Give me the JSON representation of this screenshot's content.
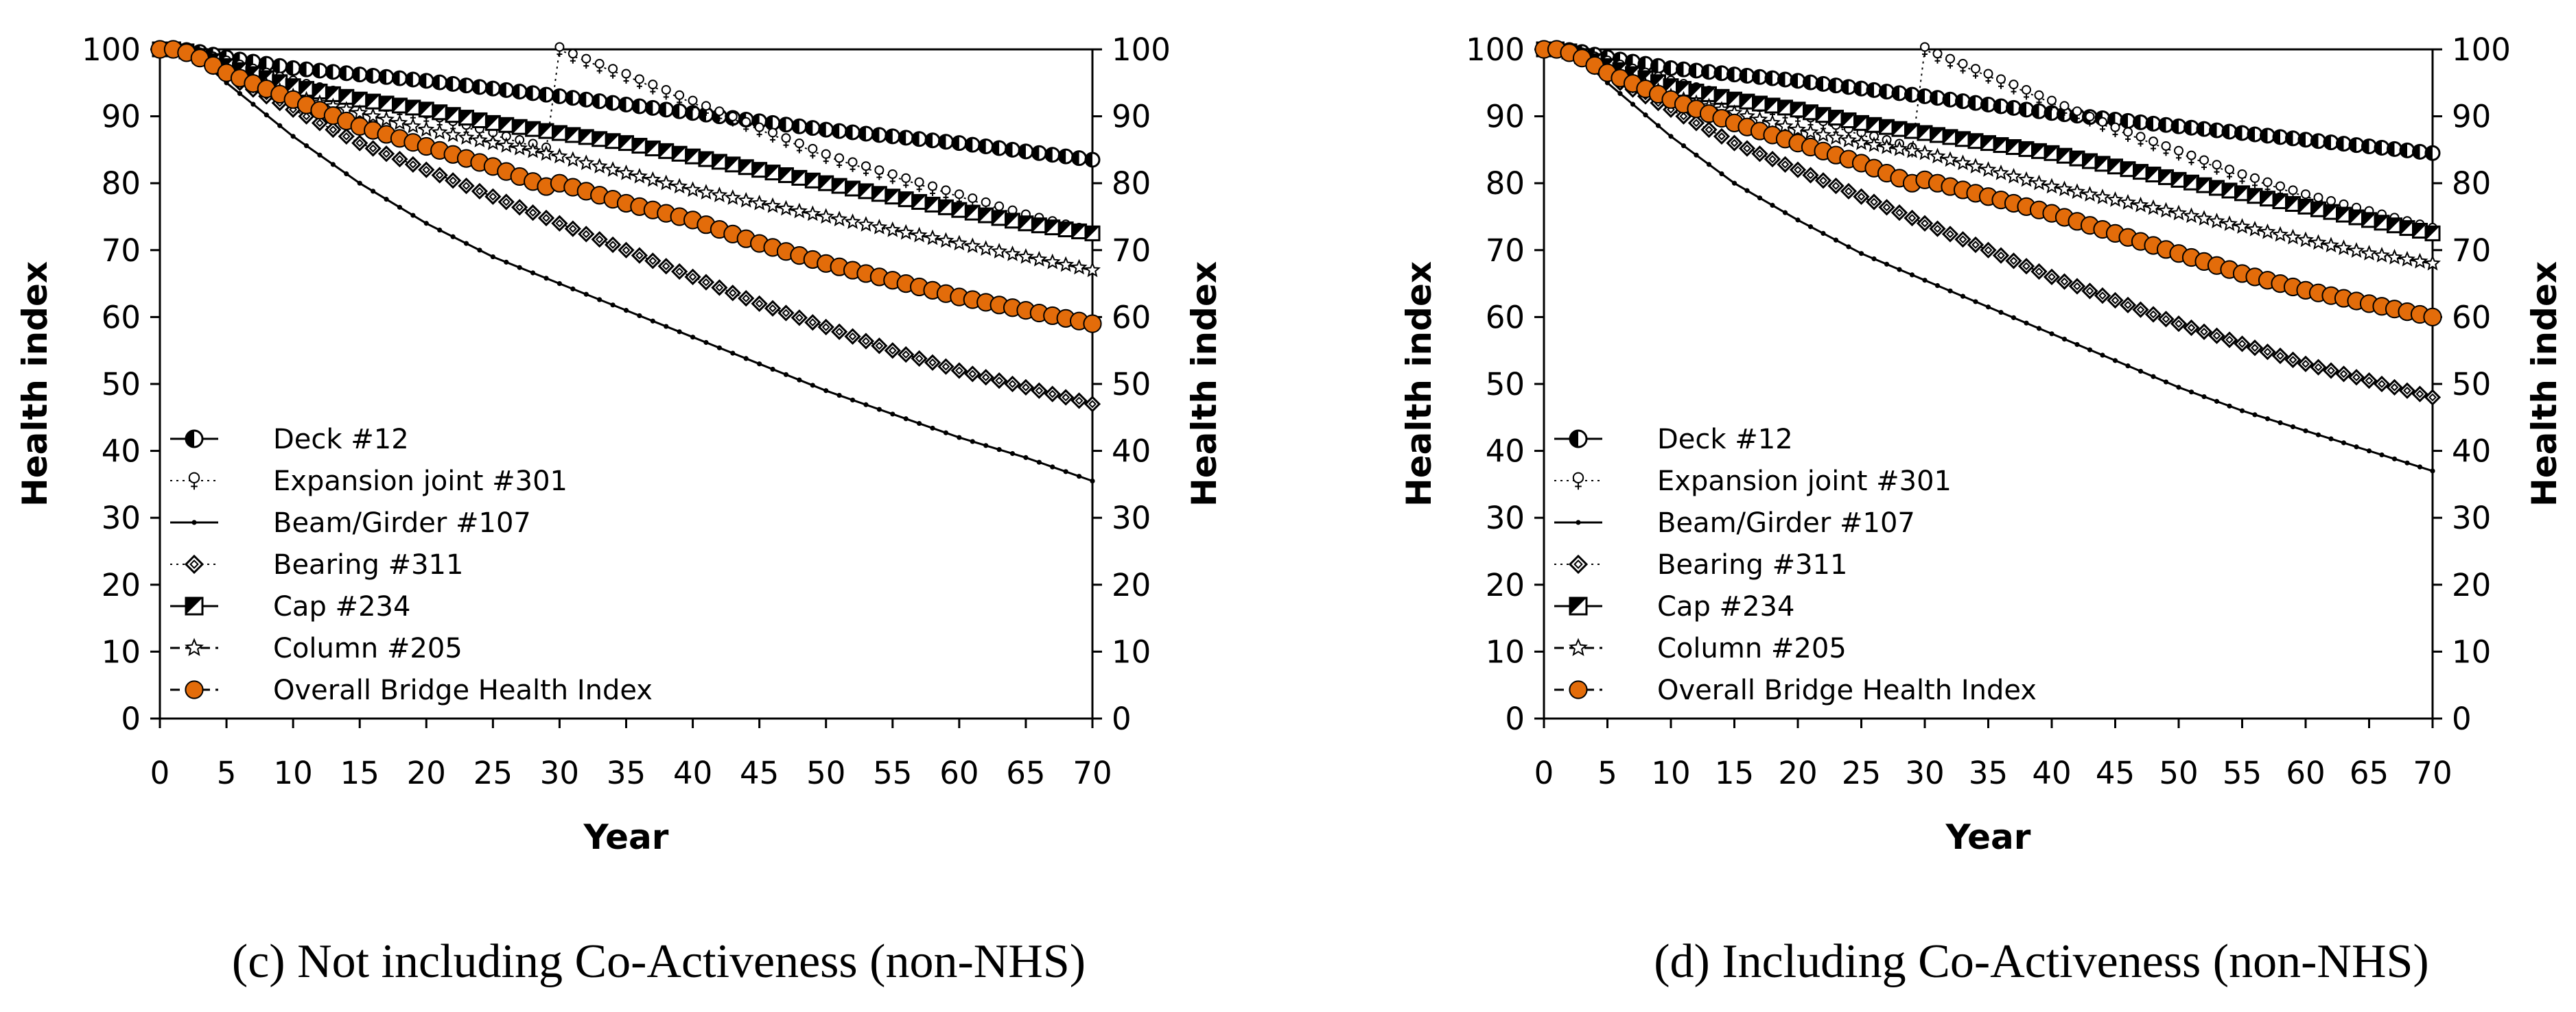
{
  "chart_data": [
    {
      "type": "line",
      "caption": "(c) Not including Co-Activeness (non-NHS)",
      "xlabel": "Year",
      "ylabel": "Health index",
      "y2label": "Health index",
      "xlim": [
        0,
        70
      ],
      "ylim": [
        0,
        100
      ],
      "xticks": [
        0,
        5,
        10,
        15,
        20,
        25,
        30,
        35,
        40,
        45,
        50,
        55,
        60,
        65,
        70
      ],
      "yticks": [
        0,
        10,
        20,
        30,
        40,
        50,
        60,
        70,
        80,
        90,
        100
      ],
      "legend_position": "bottom-left",
      "series": [
        {
          "name": "Deck #12",
          "marker": "half-circle",
          "line": "solid",
          "color": "#000000",
          "points": [
            [
              0,
              100
            ],
            [
              1,
              100
            ],
            [
              2,
              99.9
            ],
            [
              3,
              99.6
            ],
            [
              5,
              98.8
            ],
            [
              10,
              97.2
            ],
            [
              20,
              95.3
            ],
            [
              30,
              93
            ],
            [
              40,
              90.5
            ],
            [
              50,
              88
            ],
            [
              60,
              86
            ],
            [
              70,
              83.5
            ]
          ]
        },
        {
          "name": "Expansion joint #301",
          "marker": "female",
          "line": "dotted",
          "color": "#000000",
          "points": [
            [
              0,
              100
            ],
            [
              1,
              100
            ],
            [
              2,
              99.8
            ],
            [
              3,
              99.2
            ],
            [
              5,
              98
            ],
            [
              10,
              95
            ],
            [
              20,
              90
            ],
            [
              29,
              85
            ],
            [
              30,
              100
            ],
            [
              31,
              99
            ],
            [
              35,
              96
            ],
            [
              40,
              92
            ],
            [
              45,
              88
            ],
            [
              50,
              84
            ],
            [
              55,
              81
            ],
            [
              60,
              78
            ],
            [
              65,
              75
            ],
            [
              70,
              72.5
            ]
          ]
        },
        {
          "name": "Beam/Girder #107",
          "marker": "small-dot",
          "line": "solid",
          "color": "#000000",
          "points": [
            [
              0,
              100
            ],
            [
              1,
              100
            ],
            [
              2,
              99.5
            ],
            [
              3,
              98.5
            ],
            [
              5,
              95
            ],
            [
              10,
              87
            ],
            [
              15,
              80
            ],
            [
              20,
              74
            ],
            [
              25,
              69
            ],
            [
              30,
              65
            ],
            [
              35,
              61
            ],
            [
              40,
              57
            ],
            [
              45,
              53
            ],
            [
              50,
              49
            ],
            [
              55,
              45.5
            ],
            [
              60,
              42
            ],
            [
              65,
              39
            ],
            [
              70,
              35.5
            ]
          ]
        },
        {
          "name": "Bearing #311",
          "marker": "diamond",
          "line": "dotted",
          "color": "#000000",
          "points": [
            [
              0,
              100
            ],
            [
              1,
              100
            ],
            [
              2,
              99.5
            ],
            [
              3,
              98.8
            ],
            [
              5,
              96
            ],
            [
              10,
              91
            ],
            [
              15,
              86
            ],
            [
              20,
              82
            ],
            [
              25,
              78
            ],
            [
              30,
              74
            ],
            [
              35,
              70
            ],
            [
              40,
              66
            ],
            [
              45,
              62
            ],
            [
              50,
              58.5
            ],
            [
              55,
              55
            ],
            [
              60,
              52
            ],
            [
              65,
              49.5
            ],
            [
              70,
              47
            ]
          ]
        },
        {
          "name": "Cap #234",
          "marker": "half-square",
          "line": "solid",
          "color": "#000000",
          "points": [
            [
              0,
              100
            ],
            [
              1,
              100
            ],
            [
              2,
              99.7
            ],
            [
              3,
              99
            ],
            [
              5,
              97.5
            ],
            [
              10,
              94.5
            ],
            [
              15,
              92.5
            ],
            [
              20,
              91
            ],
            [
              25,
              89
            ],
            [
              30,
              87.5
            ],
            [
              35,
              86
            ],
            [
              40,
              84
            ],
            [
              45,
              82
            ],
            [
              50,
              80
            ],
            [
              55,
              78
            ],
            [
              60,
              76
            ],
            [
              65,
              74
            ],
            [
              70,
              72.5
            ]
          ]
        },
        {
          "name": "Column #205",
          "marker": "star",
          "line": "dashed",
          "color": "#000000",
          "points": [
            [
              0,
              100
            ],
            [
              1,
              100
            ],
            [
              2,
              99.7
            ],
            [
              3,
              99
            ],
            [
              5,
              97
            ],
            [
              10,
              93
            ],
            [
              15,
              90.5
            ],
            [
              20,
              88
            ],
            [
              25,
              86
            ],
            [
              30,
              84
            ],
            [
              35,
              81.5
            ],
            [
              40,
              79
            ],
            [
              45,
              77
            ],
            [
              50,
              75
            ],
            [
              55,
              73
            ],
            [
              60,
              71
            ],
            [
              65,
              69
            ],
            [
              70,
              67
            ]
          ]
        },
        {
          "name": "Overall Bridge Health Index",
          "marker": "orange-circle",
          "line": "dashed",
          "color": "#e36c0a",
          "points": [
            [
              0,
              100
            ],
            [
              1,
              100
            ],
            [
              2,
              99.5
            ],
            [
              3,
              98.7
            ],
            [
              5,
              96.5
            ],
            [
              10,
              92.5
            ],
            [
              15,
              88.5
            ],
            [
              20,
              85.5
            ],
            [
              25,
              82.5
            ],
            [
              29,
              79.5
            ],
            [
              30,
              80
            ],
            [
              35,
              77
            ],
            [
              40,
              74.5
            ],
            [
              45,
              71
            ],
            [
              50,
              68
            ],
            [
              55,
              65.5
            ],
            [
              60,
              63
            ],
            [
              65,
              61
            ],
            [
              70,
              59
            ]
          ]
        }
      ]
    },
    {
      "type": "line",
      "caption": "(d) Including Co-Activeness (non-NHS)",
      "xlabel": "Year",
      "ylabel": "Health index",
      "y2label": "Health index",
      "xlim": [
        0,
        70
      ],
      "ylim": [
        0,
        100
      ],
      "xticks": [
        0,
        5,
        10,
        15,
        20,
        25,
        30,
        35,
        40,
        45,
        50,
        55,
        60,
        65,
        70
      ],
      "yticks": [
        0,
        10,
        20,
        30,
        40,
        50,
        60,
        70,
        80,
        90,
        100
      ],
      "legend_position": "bottom-left",
      "series": [
        {
          "name": "Deck #12",
          "marker": "half-circle",
          "line": "solid",
          "color": "#000000",
          "points": [
            [
              0,
              100
            ],
            [
              1,
              100
            ],
            [
              2,
              99.9
            ],
            [
              3,
              99.6
            ],
            [
              5,
              98.8
            ],
            [
              10,
              97.2
            ],
            [
              20,
              95.3
            ],
            [
              30,
              93
            ],
            [
              40,
              90.5
            ],
            [
              50,
              88.5
            ],
            [
              60,
              86.5
            ],
            [
              70,
              84.5
            ]
          ]
        },
        {
          "name": "Expansion joint #301",
          "marker": "female",
          "line": "dotted",
          "color": "#000000",
          "points": [
            [
              0,
              100
            ],
            [
              1,
              100
            ],
            [
              2,
              99.8
            ],
            [
              3,
              99.2
            ],
            [
              5,
              98
            ],
            [
              10,
              95
            ],
            [
              20,
              90
            ],
            [
              29,
              85
            ],
            [
              30,
              100
            ],
            [
              31,
              99
            ],
            [
              35,
              96
            ],
            [
              40,
              92
            ],
            [
              45,
              88
            ],
            [
              50,
              84.5
            ],
            [
              55,
              81
            ],
            [
              60,
              78
            ],
            [
              65,
              75.5
            ],
            [
              70,
              73
            ]
          ]
        },
        {
          "name": "Beam/Girder #107",
          "marker": "small-dot",
          "line": "solid",
          "color": "#000000",
          "points": [
            [
              0,
              100
            ],
            [
              1,
              100
            ],
            [
              2,
              99.5
            ],
            [
              3,
              98.5
            ],
            [
              5,
              95
            ],
            [
              10,
              87
            ],
            [
              15,
              80
            ],
            [
              20,
              74.5
            ],
            [
              25,
              69.5
            ],
            [
              30,
              65.5
            ],
            [
              35,
              61.5
            ],
            [
              40,
              57.5
            ],
            [
              45,
              53.5
            ],
            [
              50,
              49.5
            ],
            [
              55,
              46
            ],
            [
              60,
              43
            ],
            [
              65,
              40
            ],
            [
              70,
              37
            ]
          ]
        },
        {
          "name": "Bearing #311",
          "marker": "diamond",
          "line": "dotted",
          "color": "#000000",
          "points": [
            [
              0,
              100
            ],
            [
              1,
              100
            ],
            [
              2,
              99.5
            ],
            [
              3,
              98.8
            ],
            [
              5,
              96
            ],
            [
              10,
              91
            ],
            [
              15,
              86
            ],
            [
              20,
              82
            ],
            [
              25,
              78
            ],
            [
              30,
              74
            ],
            [
              35,
              70
            ],
            [
              40,
              66
            ],
            [
              45,
              62.5
            ],
            [
              50,
              59
            ],
            [
              55,
              56
            ],
            [
              60,
              53
            ],
            [
              65,
              50.5
            ],
            [
              70,
              48
            ]
          ]
        },
        {
          "name": "Cap #234",
          "marker": "half-square",
          "line": "solid",
          "color": "#000000",
          "points": [
            [
              0,
              100
            ],
            [
              1,
              100
            ],
            [
              2,
              99.7
            ],
            [
              3,
              99
            ],
            [
              5,
              97.5
            ],
            [
              10,
              94.5
            ],
            [
              15,
              92.5
            ],
            [
              20,
              91
            ],
            [
              25,
              89
            ],
            [
              30,
              87.5
            ],
            [
              35,
              86
            ],
            [
              40,
              84.5
            ],
            [
              45,
              82.5
            ],
            [
              50,
              80.5
            ],
            [
              55,
              78.5
            ],
            [
              60,
              76.5
            ],
            [
              65,
              74.5
            ],
            [
              70,
              72.5
            ]
          ]
        },
        {
          "name": "Column #205",
          "marker": "star",
          "line": "dashed",
          "color": "#000000",
          "points": [
            [
              0,
              100
            ],
            [
              1,
              100
            ],
            [
              2,
              99.7
            ],
            [
              3,
              99
            ],
            [
              5,
              97
            ],
            [
              10,
              93
            ],
            [
              15,
              90.5
            ],
            [
              20,
              88
            ],
            [
              25,
              86
            ],
            [
              30,
              84.5
            ],
            [
              35,
              82
            ],
            [
              40,
              79.5
            ],
            [
              45,
              77.5
            ],
            [
              50,
              75.5
            ],
            [
              55,
              73.5
            ],
            [
              60,
              71.5
            ],
            [
              65,
              69.5
            ],
            [
              70,
              68
            ]
          ]
        },
        {
          "name": "Overall Bridge Health Index",
          "marker": "orange-circle",
          "line": "dashed",
          "color": "#e36c0a",
          "points": [
            [
              0,
              100
            ],
            [
              1,
              100
            ],
            [
              2,
              99.5
            ],
            [
              3,
              98.7
            ],
            [
              5,
              96.5
            ],
            [
              10,
              92.5
            ],
            [
              15,
              89
            ],
            [
              20,
              86
            ],
            [
              25,
              83
            ],
            [
              29,
              80
            ],
            [
              30,
              80.5
            ],
            [
              35,
              78
            ],
            [
              40,
              75.5
            ],
            [
              45,
              72.5
            ],
            [
              50,
              69.5
            ],
            [
              55,
              66.5
            ],
            [
              60,
              64
            ],
            [
              65,
              62
            ],
            [
              70,
              60
            ]
          ]
        }
      ]
    }
  ]
}
